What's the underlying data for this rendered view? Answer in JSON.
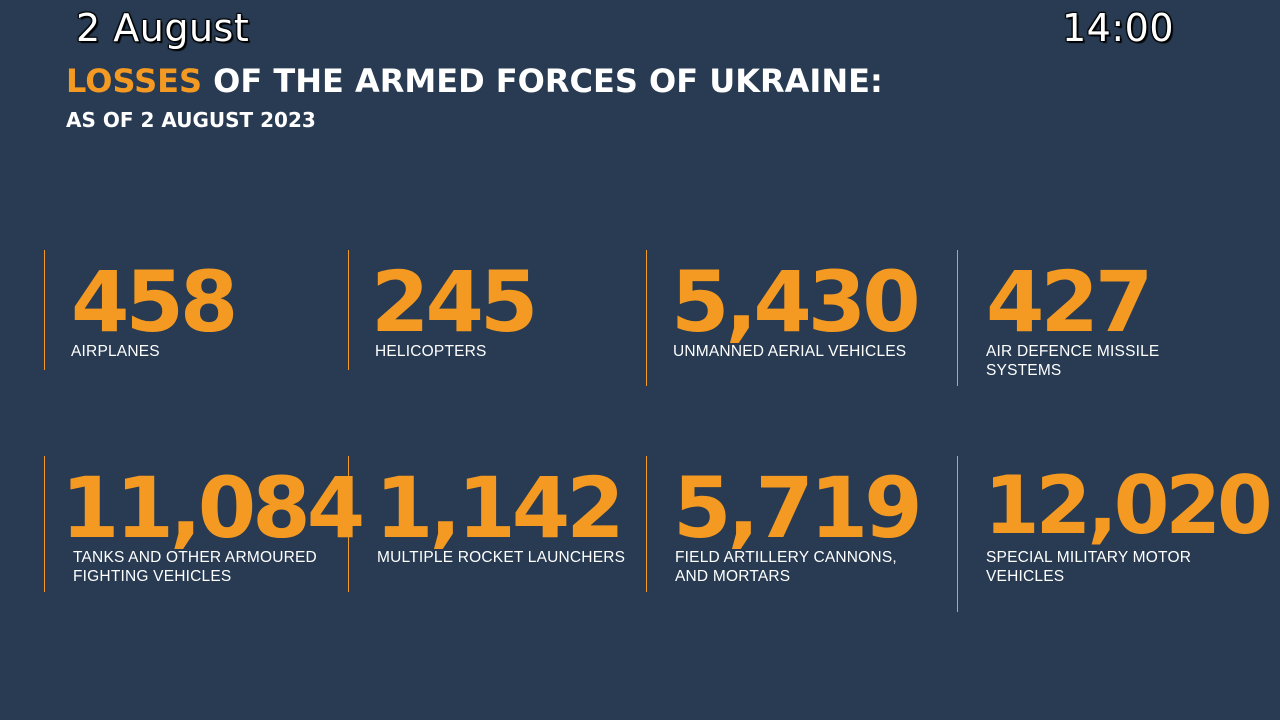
{
  "overlay": {
    "date": "2 August",
    "time": "14:00"
  },
  "header": {
    "title_accent": "LOSSES",
    "title_rest": " OF THE ARMED FORCES OF UKRAINE:",
    "subtitle": "AS OF 2 AUGUST 2023"
  },
  "accent_color": "#f49a22",
  "background_color": "#283b52",
  "stats": [
    {
      "value": "458",
      "label": "AIRPLANES"
    },
    {
      "value": "245",
      "label": "HELICOPTERS"
    },
    {
      "value": "5,430",
      "label": "UNMANNED AERIAL VEHICLES"
    },
    {
      "value": "427",
      "label": "AIR DEFENCE MISSILE SYSTEMS"
    },
    {
      "value": "11,084",
      "label": "TANKS AND OTHER ARMOURED FIGHTING VEHICLES"
    },
    {
      "value": "1,142",
      "label": "MULTIPLE ROCKET LAUNCHERS"
    },
    {
      "value": "5,719",
      "label": "FIELD ARTILLERY CANNONS, AND MORTARS"
    },
    {
      "value": "12,020",
      "label": "SPECIAL MILITARY MOTOR VEHICLES"
    }
  ]
}
